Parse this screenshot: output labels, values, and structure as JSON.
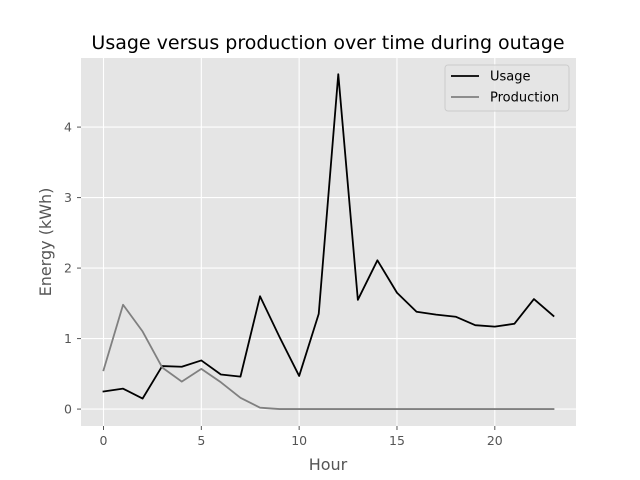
{
  "chart_data": {
    "type": "line",
    "title": "Usage versus production over time during outage",
    "xlabel": "Hour",
    "ylabel": "Energy (kWh)",
    "xlim": [
      -1.15,
      24.15
    ],
    "ylim": [
      -0.24,
      4.98
    ],
    "xticks": [
      0,
      5,
      10,
      15,
      20
    ],
    "yticks": [
      0,
      1,
      2,
      3,
      4
    ],
    "grid": true,
    "legend_position": "top-right",
    "x": [
      0,
      1,
      2,
      3,
      4,
      5,
      6,
      7,
      8,
      9,
      10,
      11,
      12,
      13,
      14,
      15,
      16,
      17,
      18,
      19,
      20,
      21,
      22,
      23
    ],
    "series": [
      {
        "name": "Usage",
        "color": "#000000",
        "values": [
          0.25,
          0.29,
          0.15,
          0.61,
          0.6,
          0.69,
          0.49,
          0.46,
          1.6,
          1.02,
          0.47,
          1.35,
          4.75,
          1.55,
          2.11,
          1.65,
          1.38,
          1.34,
          1.31,
          1.19,
          1.17,
          1.21,
          1.56,
          1.32
        ]
      },
      {
        "name": "Production",
        "color": "#808080",
        "values": [
          0.55,
          1.48,
          1.1,
          0.59,
          0.39,
          0.57,
          0.38,
          0.16,
          0.02,
          0.0,
          0.0,
          0.0,
          0.0,
          0.0,
          0.0,
          0.0,
          0.0,
          0.0,
          0.0,
          0.0,
          0.0,
          0.0,
          0.0,
          0.0
        ]
      }
    ],
    "colors": {
      "plot_background": "#e5e5e5",
      "grid": "#ffffff",
      "tick_label": "#555555"
    }
  }
}
